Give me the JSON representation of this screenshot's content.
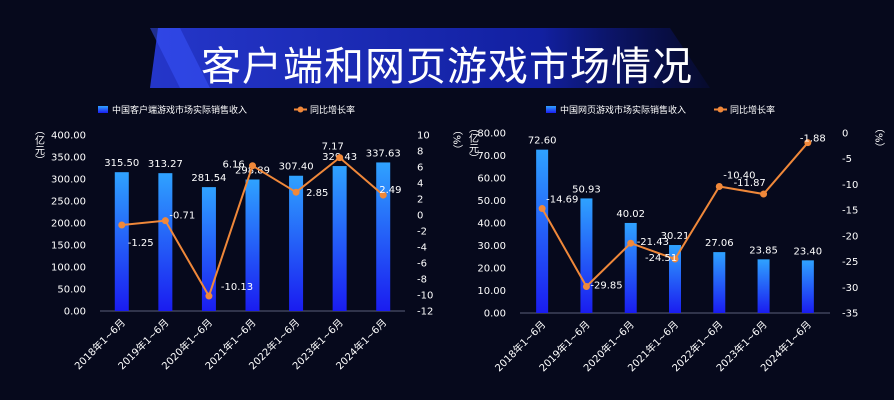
{
  "page": {
    "title": "客户端和网页游戏市场情况"
  },
  "chart_data": [
    {
      "type": "bar",
      "categories": [
        "2018年1~6月",
        "2019年1~6月",
        "2020年1~6月",
        "2021年1~6月",
        "2022年1~6月",
        "2023年1~6月",
        "2024年1~6月"
      ],
      "series": [
        {
          "name": "中国客户端游戏市场实际销售收入",
          "type": "bar",
          "axis": "left",
          "values": [
            315.5,
            313.27,
            281.54,
            298.89,
            307.4,
            329.43,
            337.63
          ],
          "labels": [
            "315.50",
            "313.27",
            "281.54",
            "298.89",
            "307.40",
            "329.43",
            "337.63"
          ]
        },
        {
          "name": "同比增长率",
          "type": "line",
          "axis": "right",
          "values": [
            -1.25,
            -0.71,
            -10.13,
            6.16,
            2.85,
            7.17,
            2.49
          ],
          "labels": [
            "-1.25",
            "-0.71",
            "-10.13",
            "6.16",
            "2.85",
            "7.17",
            "2.49"
          ]
        }
      ],
      "ylabel": "（亿元）",
      "y2label": "（%）",
      "ylim": [
        0,
        400
      ],
      "y2lim": [
        -12,
        10
      ],
      "yticks": [
        "0.00",
        "50.00",
        "100.00",
        "150.00",
        "200.00",
        "250.00",
        "300.00",
        "350.00",
        "400.00"
      ],
      "y2ticks": [
        "-12",
        "-10",
        "-8",
        "-6",
        "-4",
        "-2",
        "0",
        "2",
        "4",
        "6",
        "8",
        "10"
      ],
      "legend": "top",
      "grid": false
    },
    {
      "type": "bar",
      "categories": [
        "2018年1~6月",
        "2019年1~6月",
        "2020年1~6月",
        "2021年1~6月",
        "2022年1~6月",
        "2023年1~6月",
        "2024年1~6月"
      ],
      "series": [
        {
          "name": "中国网页游戏市场实际销售收入",
          "type": "bar",
          "axis": "left",
          "values": [
            72.6,
            50.93,
            40.02,
            30.21,
            27.06,
            23.85,
            23.4
          ],
          "labels": [
            "72.60",
            "50.93",
            "40.02",
            "30.21",
            "27.06",
            "23.85",
            "23.40"
          ]
        },
        {
          "name": "同比增长率",
          "type": "line",
          "axis": "right",
          "values": [
            -14.69,
            -29.85,
            -21.43,
            -24.51,
            -10.4,
            -11.87,
            -1.88
          ],
          "labels": [
            "-14.69",
            "-29.85",
            "-21.43",
            "-24.51",
            "-10.40",
            "-11.87",
            "-1.88"
          ]
        }
      ],
      "ylabel": "（亿元）",
      "y2label": "（%）",
      "ylim": [
        0,
        80
      ],
      "y2lim": [
        -35,
        0
      ],
      "yticks": [
        "0.00",
        "10.00",
        "20.00",
        "30.00",
        "40.00",
        "50.00",
        "60.00",
        "70.00",
        "80.00"
      ],
      "y2ticks": [
        "-35",
        "-30",
        "-25",
        "-20",
        "-15",
        "-10",
        "-5",
        "0"
      ],
      "legend": "top",
      "grid": false
    }
  ],
  "colors": {
    "bar_top": "#2fa2ff",
    "bar_bottom": "#1a1cf0",
    "line": "#f0883a",
    "title_band": "#1b2ed0",
    "background": "#06091c"
  }
}
